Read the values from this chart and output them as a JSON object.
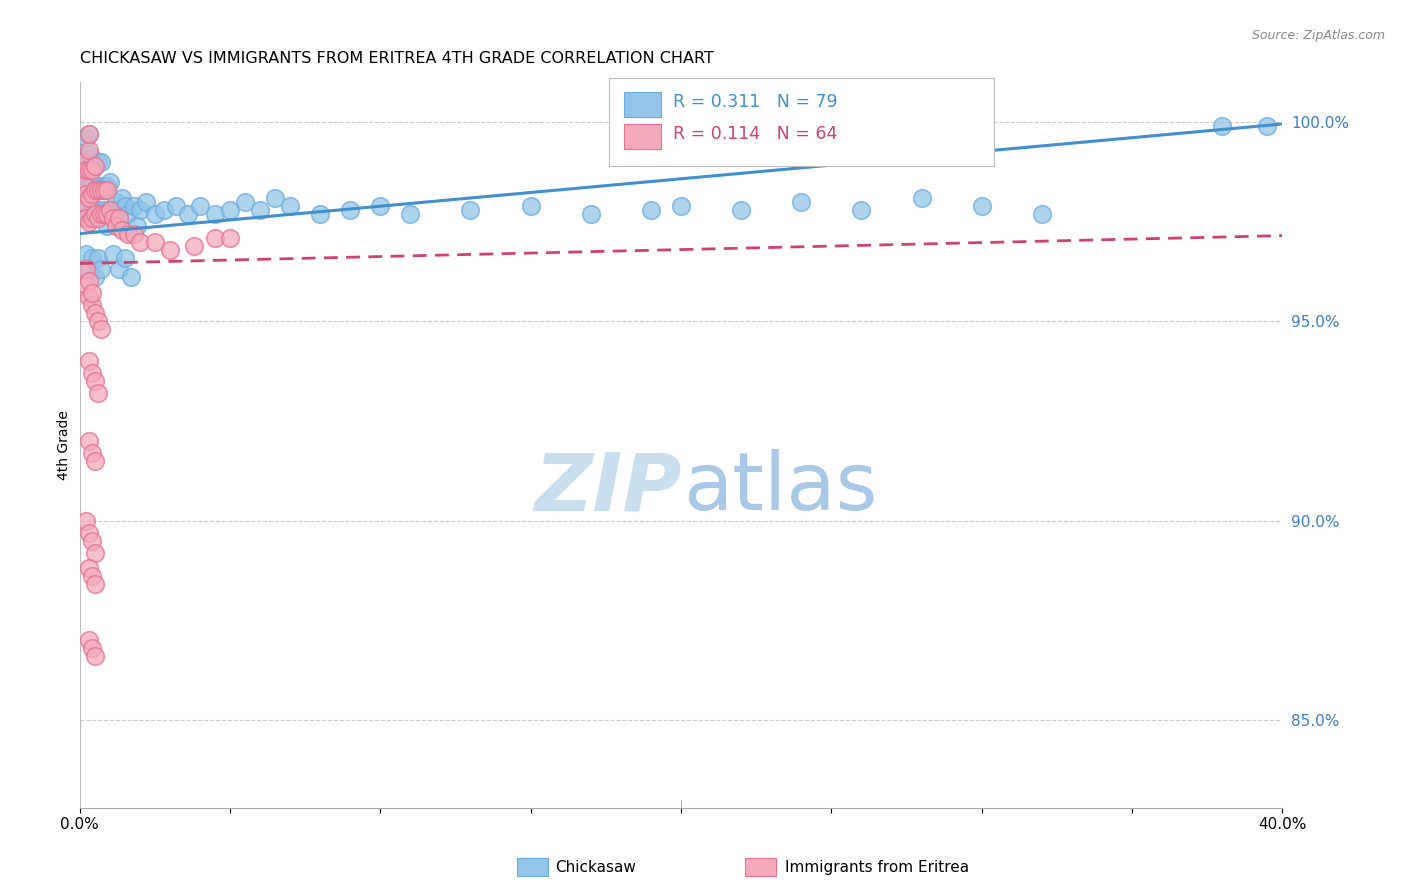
{
  "title": "CHICKASAW VS IMMIGRANTS FROM ERITREA 4TH GRADE CORRELATION CHART",
  "source": "Source: ZipAtlas.com",
  "ylabel": "4th Grade",
  "xlim": [
    0.0,
    0.4
  ],
  "ylim": [
    0.828,
    1.01
  ],
  "yticks_right": [
    0.85,
    0.9,
    0.95,
    1.0
  ],
  "legend_blue_label": "Chickasaw",
  "legend_pink_label": "Immigrants from Eritrea",
  "blue_R": 0.311,
  "blue_N": 79,
  "pink_R": 0.114,
  "pink_N": 64,
  "blue_color": "#92C5E8",
  "pink_color": "#F4AABB",
  "blue_edge_color": "#6AACE0",
  "pink_edge_color": "#E87090",
  "blue_line_color": "#4090D0",
  "pink_line_color": "#D04070",
  "watermark_zip_color": "#C8DFF0",
  "watermark_atlas_color": "#A8C8E8",
  "blue_trend_x0": 0.0,
  "blue_trend_y0": 0.972,
  "blue_trend_x1": 0.4,
  "blue_trend_y1": 0.9995,
  "pink_trend_x0": 0.0,
  "pink_trend_y0": 0.9645,
  "pink_trend_x1": 0.4,
  "pink_trend_y1": 0.9715,
  "blue_x": [
    0.001,
    0.001,
    0.001,
    0.002,
    0.002,
    0.002,
    0.002,
    0.003,
    0.003,
    0.003,
    0.003,
    0.003,
    0.004,
    0.004,
    0.004,
    0.005,
    0.005,
    0.005,
    0.006,
    0.006,
    0.006,
    0.007,
    0.007,
    0.007,
    0.008,
    0.008,
    0.009,
    0.009,
    0.01,
    0.01,
    0.011,
    0.012,
    0.013,
    0.014,
    0.015,
    0.016,
    0.018,
    0.02,
    0.022,
    0.025,
    0.028,
    0.032,
    0.036,
    0.04,
    0.045,
    0.05,
    0.055,
    0.06,
    0.065,
    0.07,
    0.08,
    0.09,
    0.1,
    0.11,
    0.13,
    0.15,
    0.17,
    0.19,
    0.2,
    0.22,
    0.24,
    0.26,
    0.28,
    0.3,
    0.32,
    0.002,
    0.003,
    0.004,
    0.005,
    0.006,
    0.007,
    0.009,
    0.011,
    0.013,
    0.015,
    0.017,
    0.019,
    0.38,
    0.395
  ],
  "blue_y": [
    0.979,
    0.984,
    0.991,
    0.978,
    0.983,
    0.988,
    0.996,
    0.976,
    0.981,
    0.986,
    0.992,
    0.997,
    0.978,
    0.984,
    0.991,
    0.977,
    0.983,
    0.989,
    0.978,
    0.984,
    0.99,
    0.977,
    0.983,
    0.99,
    0.978,
    0.984,
    0.977,
    0.984,
    0.978,
    0.985,
    0.977,
    0.98,
    0.978,
    0.981,
    0.979,
    0.977,
    0.979,
    0.978,
    0.98,
    0.977,
    0.978,
    0.979,
    0.977,
    0.979,
    0.977,
    0.978,
    0.98,
    0.978,
    0.981,
    0.979,
    0.977,
    0.978,
    0.979,
    0.977,
    0.978,
    0.979,
    0.977,
    0.978,
    0.979,
    0.978,
    0.98,
    0.978,
    0.981,
    0.979,
    0.977,
    0.967,
    0.963,
    0.966,
    0.961,
    0.966,
    0.963,
    0.974,
    0.967,
    0.963,
    0.966,
    0.961,
    0.974,
    0.999,
    0.999
  ],
  "pink_x": [
    0.001,
    0.001,
    0.001,
    0.002,
    0.002,
    0.002,
    0.003,
    0.003,
    0.003,
    0.003,
    0.003,
    0.004,
    0.004,
    0.004,
    0.005,
    0.005,
    0.005,
    0.006,
    0.006,
    0.007,
    0.007,
    0.008,
    0.008,
    0.009,
    0.009,
    0.01,
    0.011,
    0.012,
    0.013,
    0.014,
    0.016,
    0.018,
    0.02,
    0.025,
    0.03,
    0.038,
    0.045,
    0.05,
    0.002,
    0.003,
    0.004,
    0.005,
    0.006,
    0.007,
    0.002,
    0.003,
    0.004,
    0.003,
    0.004,
    0.005,
    0.006,
    0.003,
    0.004,
    0.005,
    0.002,
    0.003,
    0.004,
    0.005,
    0.003,
    0.004,
    0.005,
    0.003,
    0.004,
    0.005
  ],
  "pink_y": [
    0.98,
    0.985,
    0.99,
    0.976,
    0.982,
    0.988,
    0.975,
    0.981,
    0.988,
    0.993,
    0.997,
    0.976,
    0.982,
    0.988,
    0.977,
    0.983,
    0.989,
    0.976,
    0.983,
    0.977,
    0.983,
    0.977,
    0.983,
    0.977,
    0.983,
    0.978,
    0.976,
    0.974,
    0.976,
    0.973,
    0.972,
    0.972,
    0.97,
    0.97,
    0.968,
    0.969,
    0.971,
    0.971,
    0.959,
    0.956,
    0.954,
    0.952,
    0.95,
    0.948,
    0.963,
    0.96,
    0.957,
    0.94,
    0.937,
    0.935,
    0.932,
    0.92,
    0.917,
    0.915,
    0.9,
    0.897,
    0.895,
    0.892,
    0.888,
    0.886,
    0.884,
    0.87,
    0.868,
    0.866
  ]
}
